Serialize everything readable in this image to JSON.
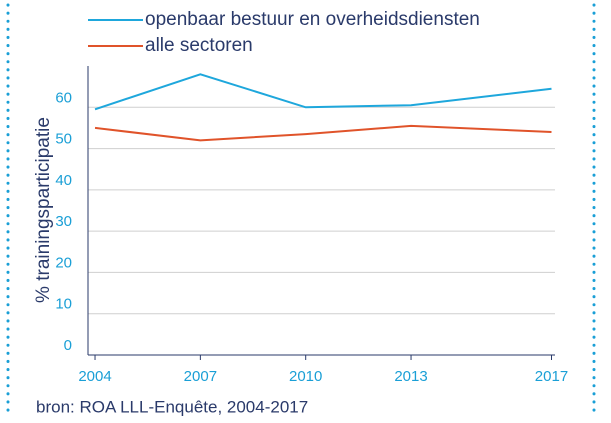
{
  "chart_data": {
    "type": "line",
    "ylabel": "% trainingsparticipatie",
    "source": "bron: ROA LLL-Enquête, 2004-2017",
    "x": [
      2004,
      2007,
      2010,
      2013,
      2017
    ],
    "series": [
      {
        "name": "openbaar bestuur en overheidsdiensten",
        "color": "#1ea7dc",
        "values": [
          59.5,
          68,
          60,
          60.5,
          64.5
        ]
      },
      {
        "name": "alle sectoren",
        "color": "#e0532a",
        "values": [
          55,
          52,
          53.5,
          55.5,
          54
        ]
      }
    ],
    "xlim": [
      2003.8,
      2017.1
    ],
    "xticks": [
      2004,
      2007,
      2010,
      2013,
      2017
    ],
    "ylim": [
      0,
      70
    ],
    "yticks": [
      0,
      10,
      20,
      30,
      40,
      50,
      60
    ],
    "grid": true
  }
}
